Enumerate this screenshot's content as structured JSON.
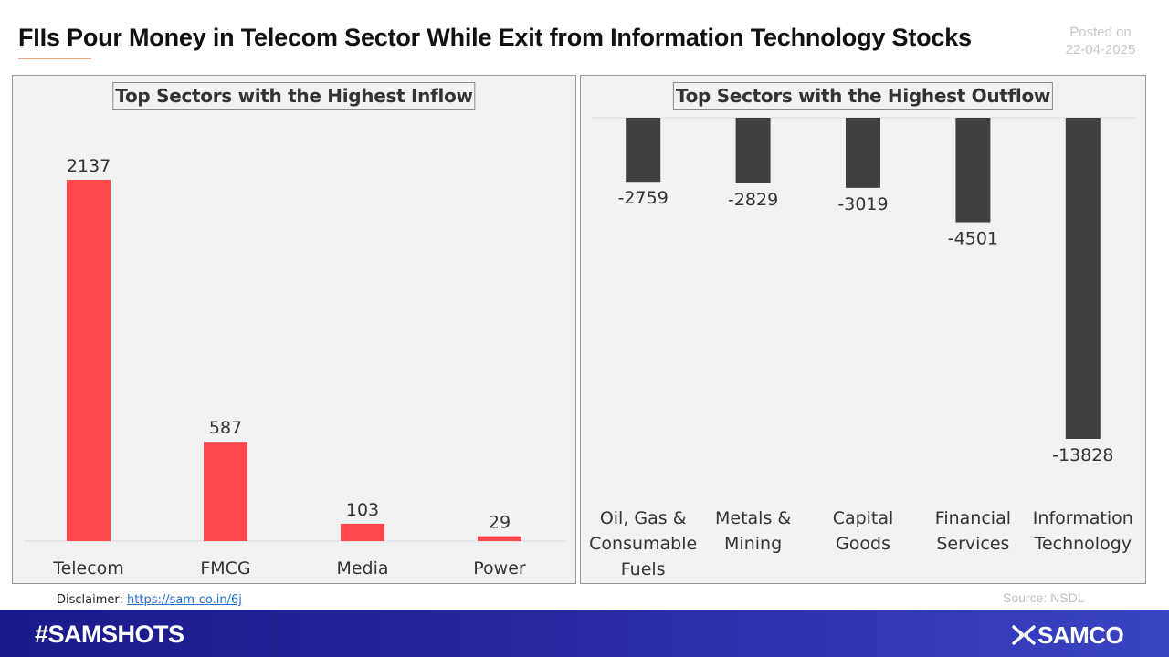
{
  "header": {
    "title": "FIIs Pour Money in Telecom Sector While Exit from Information Technology Stocks",
    "posted_label": "Posted on",
    "posted_date": "22-04-2025"
  },
  "chart_data": [
    {
      "type": "bar",
      "title": "Top Sectors with the Highest Inflow",
      "categories": [
        "Telecom",
        "FMCG",
        "Media",
        "Power"
      ],
      "values": [
        2137,
        587,
        103,
        29
      ],
      "color": "#ff474c"
    },
    {
      "type": "bar",
      "title": "Top Sectors with the Highest Outflow",
      "categories": [
        "Oil, Gas & Consumable Fuels",
        "Metals & Mining",
        "Capital Goods",
        "Financial Services",
        "Information Technology"
      ],
      "category_lines": [
        [
          "Oil, Gas &",
          "Consumable",
          "Fuels"
        ],
        [
          "Metals &",
          "Mining"
        ],
        [
          "Capital",
          "Goods"
        ],
        [
          "Financial",
          "Services"
        ],
        [
          "Information",
          "Technology"
        ]
      ],
      "values": [
        -2759,
        -2829,
        -3019,
        -4501,
        -13828
      ],
      "color": "#404040"
    }
  ],
  "footer": {
    "disclaimer_label": "Disclaimer:",
    "disclaimer_link": "https://sam-co.in/6j",
    "source": "Source: NSDL",
    "hashtag": "#SAMSHOTS",
    "brand": "SAMCO"
  }
}
